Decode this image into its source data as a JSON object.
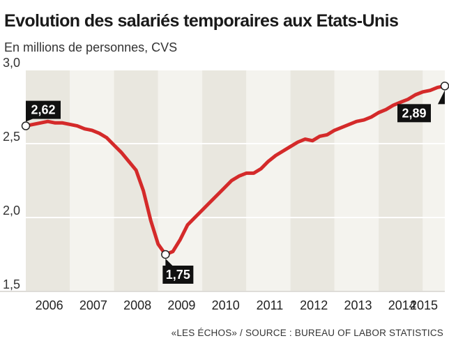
{
  "header": {
    "title": "Evolution des salariés temporaires aux Etats-Unis",
    "subtitle": "En millions de personnes, CVS"
  },
  "footer": {
    "source": "«LES ÉCHOS» / SOURCE : BUREAU OF LABOR STATISTICS"
  },
  "colors": {
    "line": "#d42a2a",
    "band_dark": "#e9e7df",
    "band_light": "#f4f3ee",
    "callout_bg": "#111111",
    "callout_text": "#ffffff"
  },
  "chart_data": {
    "type": "line",
    "title": "Evolution des salariés temporaires aux Etats-Unis",
    "subtitle": "En millions de personnes, CVS",
    "xlabel": "",
    "ylabel": "",
    "ylim": [
      1.5,
      3.0
    ],
    "xlim": [
      "2006-01",
      "2015-07"
    ],
    "y_ticks": [
      "1,5",
      "2,0",
      "2,5",
      "3,0"
    ],
    "y_tick_values": [
      1.5,
      2.0,
      2.5,
      3.0
    ],
    "x_ticks": [
      "2006",
      "2007",
      "2008",
      "2009",
      "2010",
      "2011",
      "2012",
      "2013",
      "2014",
      "2015"
    ],
    "grid": true,
    "legend": "none",
    "series": [
      {
        "x": [
          "2006-01",
          "2006-03",
          "2006-05",
          "2006-07",
          "2006-09",
          "2006-11",
          "2007-01",
          "2007-03",
          "2007-05",
          "2007-07",
          "2007-09",
          "2007-11",
          "2008-01",
          "2008-03",
          "2008-05",
          "2008-07",
          "2008-09",
          "2008-11",
          "2009-01",
          "2009-03",
          "2009-05",
          "2009-07",
          "2009-09",
          "2009-11",
          "2010-01",
          "2010-03",
          "2010-05",
          "2010-07",
          "2010-09",
          "2010-11",
          "2011-01",
          "2011-03",
          "2011-05",
          "2011-07",
          "2011-09",
          "2011-11",
          "2012-01",
          "2012-03",
          "2012-05",
          "2012-07",
          "2012-09",
          "2012-11",
          "2013-01",
          "2013-03",
          "2013-05",
          "2013-07",
          "2013-09",
          "2013-11",
          "2014-01",
          "2014-03",
          "2014-05",
          "2014-07",
          "2014-09",
          "2014-11",
          "2015-01",
          "2015-03",
          "2015-05",
          "2015-07"
        ],
        "values": [
          2.62,
          2.63,
          2.64,
          2.65,
          2.64,
          2.64,
          2.63,
          2.62,
          2.6,
          2.59,
          2.57,
          2.54,
          2.49,
          2.44,
          2.38,
          2.32,
          2.18,
          1.98,
          1.82,
          1.75,
          1.77,
          1.85,
          1.95,
          2.0,
          2.05,
          2.1,
          2.15,
          2.2,
          2.25,
          2.28,
          2.3,
          2.3,
          2.33,
          2.38,
          2.42,
          2.45,
          2.48,
          2.51,
          2.53,
          2.52,
          2.55,
          2.56,
          2.59,
          2.61,
          2.63,
          2.65,
          2.66,
          2.68,
          2.71,
          2.73,
          2.76,
          2.78,
          2.8,
          2.83,
          2.85,
          2.86,
          2.88,
          2.89
        ]
      }
    ],
    "annotations": [
      {
        "label": "2,62",
        "x": "2006-01",
        "y": 2.62
      },
      {
        "label": "1,75",
        "x": "2009-03",
        "y": 1.75
      },
      {
        "label": "2,89",
        "x": "2015-07",
        "y": 2.89
      }
    ]
  }
}
